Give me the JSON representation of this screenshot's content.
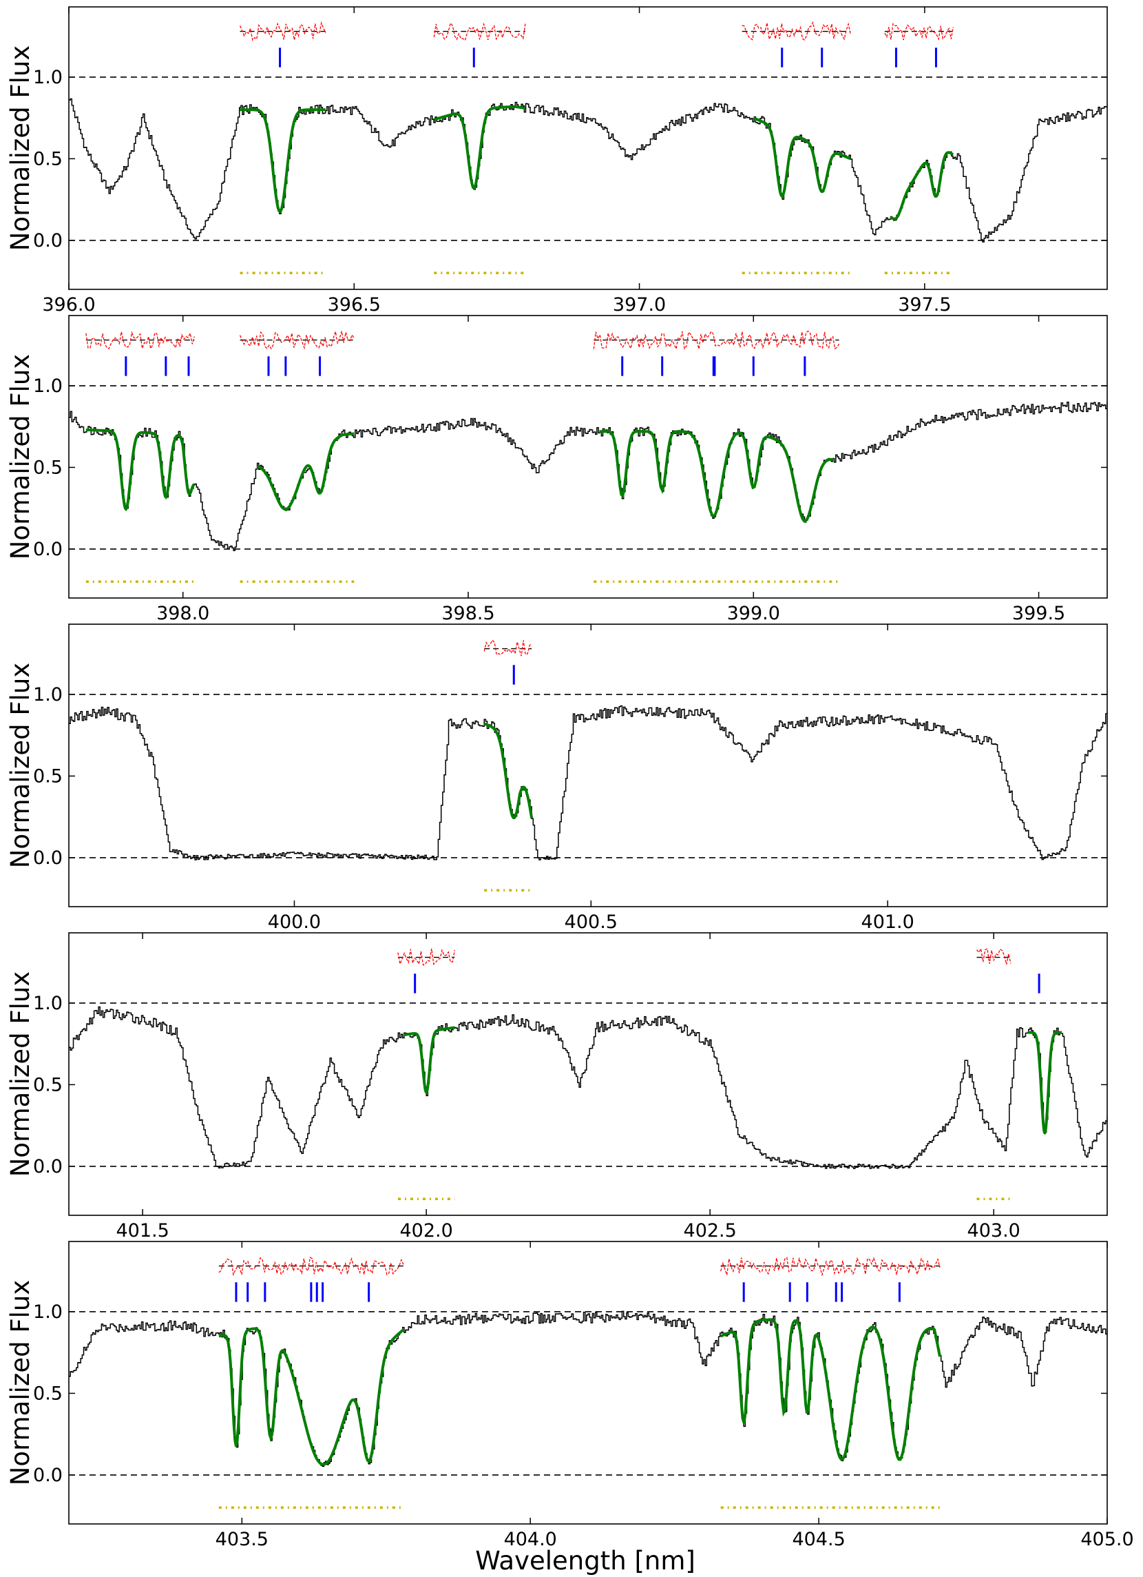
{
  "colors": {
    "spectrum": "#000000",
    "fit": "#008000",
    "component_marker": "#0000ff",
    "residuals": "#ff0000",
    "fit_region": "#c8b400",
    "reference_line": "#000000"
  },
  "figure": {
    "xlabel": "Wavelength [nm]"
  },
  "chart_data": [
    {
      "type": "line",
      "ylabel": "Normalized Flux",
      "xlim": [
        396.0,
        397.82
      ],
      "ylim": [
        -0.3,
        1.43
      ],
      "xticks": [
        "396.0",
        "396.5",
        "397.0",
        "397.5"
      ],
      "yticks": [
        "0.0",
        "0.5",
        "1.0"
      ],
      "reference_lines": [
        0.0,
        1.0
      ],
      "fit_regions": [
        [
          396.3,
          396.45
        ],
        [
          396.64,
          396.8
        ],
        [
          397.18,
          397.37
        ],
        [
          397.43,
          397.55
        ]
      ],
      "component_markers": [
        396.37,
        396.71,
        397.25,
        397.32,
        397.45,
        397.52
      ],
      "spectrum": {
        "continuum": [
          [
            396.0,
            0.88
          ],
          [
            396.03,
            0.55
          ],
          [
            396.07,
            0.3
          ],
          [
            396.1,
            0.45
          ],
          [
            396.13,
            0.75
          ],
          [
            396.17,
            0.35
          ],
          [
            396.22,
            0.0
          ],
          [
            396.26,
            0.22
          ],
          [
            396.3,
            0.8
          ],
          [
            396.5,
            0.8
          ],
          [
            396.56,
            0.57
          ],
          [
            396.6,
            0.7
          ],
          [
            396.7,
            0.8
          ],
          [
            396.78,
            0.82
          ],
          [
            396.86,
            0.78
          ],
          [
            396.93,
            0.72
          ],
          [
            396.98,
            0.5
          ],
          [
            397.05,
            0.7
          ],
          [
            397.14,
            0.82
          ],
          [
            397.2,
            0.75
          ],
          [
            397.37,
            0.5
          ],
          [
            397.41,
            0.04
          ],
          [
            397.46,
            0.25
          ],
          [
            397.52,
            0.6
          ],
          [
            397.56,
            0.5
          ],
          [
            397.6,
            0.0
          ],
          [
            397.65,
            0.15
          ],
          [
            397.7,
            0.72
          ],
          [
            397.82,
            0.8
          ]
        ],
        "lines": [
          {
            "center": 396.37,
            "depth": 0.78,
            "width": 0.012
          },
          {
            "center": 396.71,
            "depth": 0.6,
            "width": 0.01
          },
          {
            "center": 397.25,
            "depth": 0.6,
            "width": 0.009
          },
          {
            "center": 397.32,
            "depth": 0.48,
            "width": 0.009
          },
          {
            "center": 397.45,
            "depth": 0.35,
            "width": 0.008
          },
          {
            "center": 397.52,
            "depth": 0.55,
            "width": 0.008
          }
        ]
      },
      "fit_segments": [
        [
          396.3,
          396.45
        ],
        [
          396.64,
          396.8
        ],
        [
          397.2,
          397.37
        ],
        [
          397.44,
          397.55
        ]
      ]
    },
    {
      "type": "line",
      "ylabel": "Normalized Flux",
      "xlim": [
        397.8,
        399.62
      ],
      "ylim": [
        -0.3,
        1.43
      ],
      "xticks": [
        "398.0",
        "398.5",
        "399.0",
        "399.5"
      ],
      "yticks": [
        "0.0",
        "0.5",
        "1.0"
      ],
      "reference_lines": [
        0.0,
        1.0
      ],
      "fit_regions": [
        [
          397.83,
          398.02
        ],
        [
          398.1,
          398.3
        ],
        [
          398.72,
          399.15
        ]
      ],
      "component_markers": [
        397.9,
        397.97,
        398.01,
        398.15,
        398.18,
        398.24,
        398.77,
        398.84,
        398.93,
        398.932,
        399.0,
        399.09
      ],
      "spectrum": {
        "continuum": [
          [
            397.8,
            0.82
          ],
          [
            397.83,
            0.73
          ],
          [
            397.9,
            0.72
          ],
          [
            398.0,
            0.7
          ],
          [
            398.05,
            0.05
          ],
          [
            398.09,
            0.0
          ],
          [
            398.13,
            0.52
          ],
          [
            398.2,
            0.55
          ],
          [
            398.28,
            0.7
          ],
          [
            398.34,
            0.72
          ],
          [
            398.42,
            0.74
          ],
          [
            398.5,
            0.78
          ],
          [
            398.56,
            0.72
          ],
          [
            398.62,
            0.48
          ],
          [
            398.68,
            0.72
          ],
          [
            398.75,
            0.72
          ],
          [
            398.85,
            0.72
          ],
          [
            399.0,
            0.72
          ],
          [
            399.14,
            0.55
          ],
          [
            399.2,
            0.6
          ],
          [
            399.3,
            0.78
          ],
          [
            399.45,
            0.85
          ],
          [
            399.62,
            0.88
          ]
        ],
        "lines": [
          {
            "center": 397.9,
            "depth": 0.66,
            "width": 0.008
          },
          {
            "center": 397.97,
            "depth": 0.55,
            "width": 0.007
          },
          {
            "center": 398.01,
            "depth": 0.4,
            "width": 0.006
          },
          {
            "center": 398.18,
            "depth": 0.55,
            "width": 0.02
          },
          {
            "center": 398.24,
            "depth": 0.45,
            "width": 0.01
          },
          {
            "center": 398.77,
            "depth": 0.55,
            "width": 0.007
          },
          {
            "center": 398.84,
            "depth": 0.5,
            "width": 0.007
          },
          {
            "center": 398.93,
            "depth": 0.72,
            "width": 0.015
          },
          {
            "center": 399.0,
            "depth": 0.48,
            "width": 0.008
          },
          {
            "center": 399.09,
            "depth": 0.72,
            "width": 0.016
          }
        ]
      },
      "fit_segments": [
        [
          397.83,
          398.02
        ],
        [
          398.13,
          398.3
        ],
        [
          398.73,
          399.14
        ]
      ]
    },
    {
      "type": "line",
      "ylabel": "Normalized Flux",
      "xlim": [
        399.62,
        401.37
      ],
      "ylim": [
        -0.3,
        1.43
      ],
      "xticks": [
        "400.0",
        "400.5",
        "401.0"
      ],
      "yticks": [
        "0.0",
        "0.5",
        "1.0"
      ],
      "reference_lines": [
        0.0,
        1.0
      ],
      "fit_regions": [
        [
          400.32,
          400.4
        ]
      ],
      "component_markers": [
        400.37
      ],
      "spectrum": {
        "continuum": [
          [
            399.62,
            0.85
          ],
          [
            399.68,
            0.9
          ],
          [
            399.73,
            0.85
          ],
          [
            399.76,
            0.6
          ],
          [
            399.79,
            0.05
          ],
          [
            399.83,
            0.0
          ],
          [
            400.0,
            0.02
          ],
          [
            400.24,
            0.0
          ],
          [
            400.26,
            0.82
          ],
          [
            400.32,
            0.82
          ],
          [
            400.38,
            0.75
          ],
          [
            400.41,
            0.0
          ],
          [
            400.44,
            0.0
          ],
          [
            400.47,
            0.85
          ],
          [
            400.55,
            0.9
          ],
          [
            400.7,
            0.88
          ],
          [
            400.77,
            0.6
          ],
          [
            400.82,
            0.82
          ],
          [
            401.0,
            0.85
          ],
          [
            401.1,
            0.78
          ],
          [
            401.18,
            0.7
          ],
          [
            401.22,
            0.25
          ],
          [
            401.26,
            0.0
          ],
          [
            401.3,
            0.05
          ],
          [
            401.33,
            0.6
          ],
          [
            401.37,
            0.88
          ]
        ],
        "lines": [
          {
            "center": 400.37,
            "depth": 0.68,
            "width": 0.012
          }
        ]
      },
      "fit_segments": [
        [
          400.32,
          400.4
        ]
      ]
    },
    {
      "type": "line",
      "ylabel": "Normalized Flux",
      "xlim": [
        401.37,
        403.2
      ],
      "ylim": [
        -0.3,
        1.43
      ],
      "xticks": [
        "401.5",
        "402.0",
        "402.5",
        "403.0"
      ],
      "yticks": [
        "0.0",
        "0.5",
        "1.0"
      ],
      "reference_lines": [
        0.0,
        1.0
      ],
      "fit_regions": [
        [
          401.95,
          402.05
        ],
        [
          402.97,
          403.03
        ]
      ],
      "component_markers": [
        401.98,
        403.08
      ],
      "spectrum": {
        "continuum": [
          [
            401.37,
            0.72
          ],
          [
            401.42,
            0.95
          ],
          [
            401.5,
            0.9
          ],
          [
            401.56,
            0.82
          ],
          [
            401.6,
            0.3
          ],
          [
            401.63,
            0.0
          ],
          [
            401.69,
            0.02
          ],
          [
            401.72,
            0.55
          ],
          [
            401.75,
            0.3
          ],
          [
            401.78,
            0.08
          ],
          [
            401.83,
            0.65
          ],
          [
            401.88,
            0.3
          ],
          [
            401.92,
            0.75
          ],
          [
            401.95,
            0.8
          ],
          [
            402.05,
            0.85
          ],
          [
            402.15,
            0.9
          ],
          [
            402.23,
            0.82
          ],
          [
            402.27,
            0.5
          ],
          [
            402.3,
            0.85
          ],
          [
            402.42,
            0.9
          ],
          [
            402.5,
            0.75
          ],
          [
            402.55,
            0.2
          ],
          [
            402.6,
            0.05
          ],
          [
            402.7,
            0.0
          ],
          [
            402.85,
            0.0
          ],
          [
            402.93,
            0.3
          ],
          [
            402.95,
            0.65
          ],
          [
            402.98,
            0.3
          ],
          [
            403.02,
            0.1
          ],
          [
            403.04,
            0.82
          ],
          [
            403.12,
            0.82
          ],
          [
            403.16,
            0.05
          ],
          [
            403.2,
            0.3
          ]
        ],
        "lines": [
          {
            "center": 402.0,
            "depth": 0.45,
            "width": 0.006
          },
          {
            "center": 403.09,
            "depth": 0.75,
            "width": 0.006
          }
        ]
      },
      "fit_segments": [
        [
          401.96,
          402.05
        ],
        [
          403.06,
          403.12
        ]
      ]
    },
    {
      "type": "line",
      "ylabel": "Normalized Flux",
      "xlim": [
        403.2,
        405.0
      ],
      "ylim": [
        -0.3,
        1.43
      ],
      "xticks": [
        "403.5",
        "404.0",
        "404.5",
        "405.0"
      ],
      "yticks": [
        "0.0",
        "0.5",
        "1.0"
      ],
      "reference_lines": [
        0.0,
        1.0
      ],
      "fit_regions": [
        [
          403.46,
          403.78
        ],
        [
          404.33,
          404.71
        ]
      ],
      "component_markers": [
        403.49,
        403.51,
        403.54,
        403.62,
        403.63,
        403.64,
        403.72,
        404.37,
        404.45,
        404.48,
        404.53,
        404.54,
        404.64
      ],
      "spectrum": {
        "continuum": [
          [
            403.2,
            0.6
          ],
          [
            403.25,
            0.9
          ],
          [
            403.4,
            0.92
          ],
          [
            403.46,
            0.85
          ],
          [
            403.55,
            0.92
          ],
          [
            403.65,
            0.5
          ],
          [
            403.8,
            0.95
          ],
          [
            404.0,
            0.96
          ],
          [
            404.2,
            0.97
          ],
          [
            404.28,
            0.92
          ],
          [
            404.3,
            0.68
          ],
          [
            404.33,
            0.85
          ],
          [
            404.4,
            0.95
          ],
          [
            404.6,
            0.95
          ],
          [
            404.7,
            0.9
          ],
          [
            404.72,
            0.55
          ],
          [
            404.78,
            0.95
          ],
          [
            404.85,
            0.85
          ],
          [
            404.87,
            0.55
          ],
          [
            404.9,
            0.95
          ],
          [
            405.0,
            0.88
          ]
        ],
        "lines": [
          {
            "center": 403.49,
            "depth": 0.8,
            "width": 0.006
          },
          {
            "center": 403.55,
            "depth": 0.75,
            "width": 0.008
          },
          {
            "center": 403.64,
            "depth": 0.88,
            "width": 0.03
          },
          {
            "center": 403.72,
            "depth": 0.88,
            "width": 0.013
          },
          {
            "center": 404.37,
            "depth": 0.65,
            "width": 0.006
          },
          {
            "center": 404.44,
            "depth": 0.6,
            "width": 0.006
          },
          {
            "center": 404.48,
            "depth": 0.6,
            "width": 0.006
          },
          {
            "center": 404.54,
            "depth": 0.9,
            "width": 0.02
          },
          {
            "center": 404.64,
            "depth": 0.9,
            "width": 0.017
          }
        ]
      },
      "fit_segments": [
        [
          403.46,
          403.78
        ],
        [
          404.33,
          404.71
        ]
      ]
    }
  ]
}
